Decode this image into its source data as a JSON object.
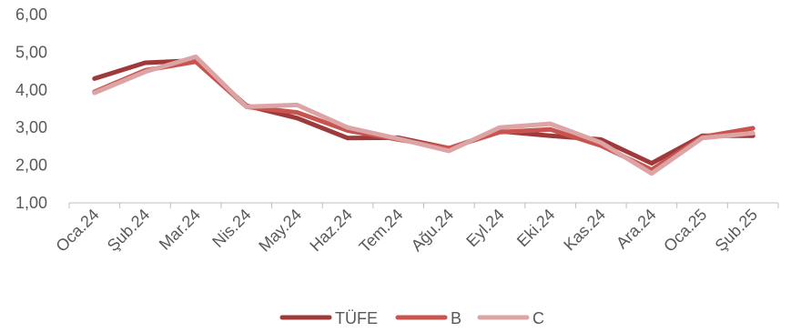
{
  "chart_data": {
    "type": "line",
    "categories": [
      "Oca.24",
      "Şub.24",
      "Mar.24",
      "Nis.24",
      "May.24",
      "Haz.24",
      "Tem.24",
      "Ağu.24",
      "Eyl.24",
      "Eki.24",
      "Kas.24",
      "Ara.24",
      "Oca.25",
      "Şub.25"
    ],
    "series": [
      {
        "name": "TÜFE",
        "color": "#9e3a3a",
        "values": [
          4.3,
          4.72,
          4.78,
          3.58,
          3.25,
          2.72,
          2.73,
          2.45,
          2.9,
          2.78,
          2.68,
          2.05,
          2.78,
          2.78
        ]
      },
      {
        "name": "B",
        "color": "#c9534f",
        "values": [
          3.95,
          4.52,
          4.75,
          3.55,
          3.4,
          2.92,
          2.68,
          2.45,
          2.88,
          2.95,
          2.52,
          1.88,
          2.75,
          2.98
        ]
      },
      {
        "name": "C",
        "color": "#dca4a4",
        "values": [
          3.92,
          4.48,
          4.88,
          3.55,
          3.6,
          3.0,
          2.7,
          2.38,
          3.0,
          3.1,
          2.6,
          1.78,
          2.72,
          2.85
        ]
      }
    ],
    "y_ticks": [
      "1,00",
      "2,00",
      "3,00",
      "4,00",
      "5,00",
      "6,00"
    ],
    "ylim": [
      1,
      6
    ],
    "grid": false,
    "legend_position": "bottom"
  }
}
